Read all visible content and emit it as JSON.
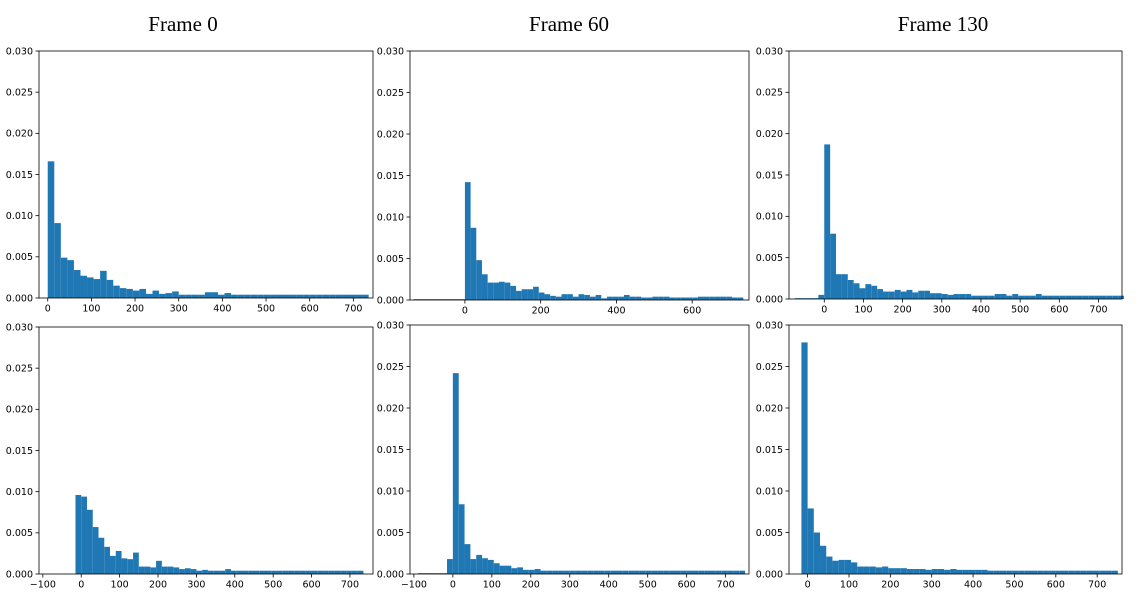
{
  "column_titles": [
    "Frame 0",
    "Frame 60",
    "Frame 130"
  ],
  "colors": {
    "bar": "#1f77b4",
    "axis": "#000000",
    "background": "#ffffff"
  },
  "chart_data": [
    {
      "type": "bar",
      "id": "frame0-top",
      "title": "Frame 0",
      "xlim": [
        -20,
        745
      ],
      "ylim": [
        0,
        0.03
      ],
      "xticks": [
        0,
        100,
        200,
        300,
        400,
        500,
        600,
        700
      ],
      "yticks": [
        0.0,
        0.005,
        0.01,
        0.015,
        0.02,
        0.025,
        0.03
      ],
      "ytick_labels": [
        "0.000",
        "0.005",
        "0.010",
        "0.015",
        "0.020",
        "0.025",
        "0.030"
      ],
      "bin_start": 0,
      "bin_width": 15,
      "values": [
        0.0166,
        0.0091,
        0.0049,
        0.0046,
        0.0034,
        0.0027,
        0.0025,
        0.0023,
        0.0033,
        0.0022,
        0.0015,
        0.0012,
        0.0011,
        0.0009,
        0.0011,
        0.0005,
        0.0009,
        0.0005,
        0.0006,
        0.0008,
        0.0004,
        0.0004,
        0.0004,
        0.0004,
        0.0007,
        0.0007,
        0.0004,
        0.0006,
        0.0004,
        0.0004,
        0.0004,
        0.0004,
        0.0004,
        0.0004,
        0.0004,
        0.0004,
        0.0004,
        0.0004,
        0.0004,
        0.0004,
        0.0004,
        0.0004,
        0.0004,
        0.0004,
        0.0004,
        0.0004,
        0.0004,
        0.0004,
        0.0004
      ],
      "xlabel": "",
      "ylabel": ""
    },
    {
      "type": "bar",
      "id": "frame60-top",
      "title": "Frame 60",
      "xlim": [
        -145,
        750
      ],
      "ylim": [
        0,
        0.03
      ],
      "xticks": [
        0,
        200,
        400,
        600
      ],
      "yticks": [
        0.0,
        0.005,
        0.01,
        0.015,
        0.02,
        0.025,
        0.03
      ],
      "ytick_labels": [
        "0.000",
        "0.005",
        "0.010",
        "0.015",
        "0.020",
        "0.025",
        "0.030"
      ],
      "bin_start": -135,
      "bin_width": 15,
      "values": [
        0.0001,
        0.0001,
        0.0001,
        0.0001,
        0.0001,
        0.0001,
        0.0001,
        0.0001,
        0.0001,
        0.0142,
        0.0087,
        0.0048,
        0.0031,
        0.0021,
        0.0021,
        0.0022,
        0.0021,
        0.0017,
        0.0011,
        0.0013,
        0.0013,
        0.0016,
        0.0009,
        0.0007,
        0.0005,
        0.0004,
        0.0007,
        0.0007,
        0.0004,
        0.0007,
        0.0006,
        0.0004,
        0.0006,
        0.0002,
        0.0004,
        0.0004,
        0.0004,
        0.0006,
        0.0004,
        0.0004,
        0.0003,
        0.0003,
        0.0004,
        0.0004,
        0.0004,
        0.0003,
        0.0003,
        0.0003,
        0.0003,
        0.0003,
        0.0004,
        0.0004,
        0.0004,
        0.0004,
        0.0004,
        0.0004,
        0.0003,
        0.0003
      ],
      "xlabel": "",
      "ylabel": ""
    },
    {
      "type": "bar",
      "id": "frame130-top",
      "title": "Frame 130",
      "xlim": [
        -90,
        760
      ],
      "ylim": [
        0,
        0.03
      ],
      "xticks": [
        0,
        100,
        200,
        300,
        400,
        500,
        600,
        700
      ],
      "yticks": [
        0.0,
        0.005,
        0.01,
        0.015,
        0.02,
        0.025,
        0.03
      ],
      "ytick_labels": [
        "0.000",
        "0.005",
        "0.010",
        "0.015",
        "0.020",
        "0.025",
        "0.030"
      ],
      "bin_start": -75,
      "bin_width": 15,
      "values": [
        0.0001,
        0.0001,
        0.0001,
        0.0001,
        0.0005,
        0.0187,
        0.0079,
        0.003,
        0.003,
        0.0023,
        0.0019,
        0.0013,
        0.0018,
        0.0016,
        0.0012,
        0.0009,
        0.0009,
        0.0011,
        0.0009,
        0.0011,
        0.0008,
        0.001,
        0.001,
        0.0007,
        0.0007,
        0.0006,
        0.0005,
        0.0006,
        0.0006,
        0.0006,
        0.0004,
        0.0004,
        0.0004,
        0.0004,
        0.0006,
        0.0006,
        0.0004,
        0.0006,
        0.0004,
        0.0004,
        0.0004,
        0.0006,
        0.0004,
        0.0004,
        0.0004,
        0.0004,
        0.0004,
        0.0004,
        0.0004,
        0.0004,
        0.0004,
        0.0004,
        0.0004,
        0.0004,
        0.0004,
        0.0004
      ],
      "xlabel": "",
      "ylabel": ""
    },
    {
      "type": "bar",
      "id": "frame0-bottom",
      "title": "",
      "xlim": [
        -110,
        760
      ],
      "ylim": [
        0,
        0.03
      ],
      "xticks": [
        -100,
        0,
        100,
        200,
        300,
        400,
        500,
        600,
        700
      ],
      "yticks": [
        0.0,
        0.005,
        0.01,
        0.015,
        0.02,
        0.025,
        0.03
      ],
      "ytick_labels": [
        "0.000",
        "0.005",
        "0.010",
        "0.015",
        "0.020",
        "0.025",
        "0.030"
      ],
      "bin_start": -15,
      "bin_width": 15,
      "values": [
        0.0096,
        0.0094,
        0.0078,
        0.0057,
        0.0044,
        0.0033,
        0.0022,
        0.0028,
        0.0019,
        0.0018,
        0.0026,
        0.0009,
        0.0009,
        0.0008,
        0.0016,
        0.0009,
        0.0009,
        0.0008,
        0.0006,
        0.0007,
        0.0006,
        0.0004,
        0.0005,
        0.0004,
        0.0004,
        0.0004,
        0.0006,
        0.0004,
        0.0004,
        0.0004,
        0.0004,
        0.0004,
        0.0004,
        0.0004,
        0.0004,
        0.0004,
        0.0004,
        0.0004,
        0.0004,
        0.0004,
        0.0004,
        0.0004,
        0.0004,
        0.0004,
        0.0004,
        0.0004,
        0.0004,
        0.0004,
        0.0004,
        0.0004
      ],
      "xlabel": "",
      "ylabel": ""
    },
    {
      "type": "bar",
      "id": "frame60-bottom",
      "title": "",
      "xlim": [
        -110,
        760
      ],
      "ylim": [
        0,
        0.03
      ],
      "xticks": [
        -100,
        0,
        100,
        200,
        300,
        400,
        500,
        600,
        700
      ],
      "yticks": [
        0.0,
        0.005,
        0.01,
        0.015,
        0.02,
        0.025,
        0.03
      ],
      "ytick_labels": [
        "0.000",
        "0.005",
        "0.010",
        "0.015",
        "0.020",
        "0.025",
        "0.030"
      ],
      "bin_start": -90,
      "bin_width": 15,
      "values": [
        0.0001,
        0.0001,
        0.0001,
        0.0001,
        0.0001,
        0.0018,
        0.0242,
        0.0084,
        0.0036,
        0.0018,
        0.0023,
        0.0019,
        0.0017,
        0.0013,
        0.001,
        0.001,
        0.0007,
        0.0008,
        0.0005,
        0.0005,
        0.0006,
        0.0004,
        0.0004,
        0.0004,
        0.0004,
        0.0004,
        0.0004,
        0.0004,
        0.0004,
        0.0004,
        0.0004,
        0.0004,
        0.0004,
        0.0004,
        0.0004,
        0.0004,
        0.0004,
        0.0004,
        0.0004,
        0.0004,
        0.0004,
        0.0004,
        0.0004,
        0.0004,
        0.0004,
        0.0004,
        0.0004,
        0.0004,
        0.0004,
        0.0004,
        0.0004,
        0.0004,
        0.0004,
        0.0004,
        0.0004,
        0.0004
      ],
      "xlabel": "",
      "ylabel": ""
    },
    {
      "type": "bar",
      "id": "frame130-bottom",
      "title": "",
      "xlim": [
        -45,
        760
      ],
      "ylim": [
        0,
        0.03
      ],
      "xticks": [
        0,
        100,
        200,
        300,
        400,
        500,
        600,
        700
      ],
      "yticks": [
        0.0,
        0.005,
        0.01,
        0.015,
        0.02,
        0.025,
        0.03
      ],
      "ytick_labels": [
        "0.000",
        "0.005",
        "0.010",
        "0.015",
        "0.020",
        "0.025",
        "0.030"
      ],
      "bin_start": -15,
      "bin_width": 15,
      "values": [
        0.0279,
        0.0079,
        0.005,
        0.0034,
        0.0021,
        0.0016,
        0.0017,
        0.0017,
        0.0014,
        0.0009,
        0.0009,
        0.0009,
        0.0008,
        0.0009,
        0.0007,
        0.0007,
        0.0007,
        0.0006,
        0.0006,
        0.0006,
        0.0005,
        0.0006,
        0.0006,
        0.0005,
        0.0006,
        0.0005,
        0.0005,
        0.0005,
        0.0005,
        0.0005,
        0.0004,
        0.0004,
        0.0004,
        0.0004,
        0.0004,
        0.0004,
        0.0004,
        0.0004,
        0.0004,
        0.0004,
        0.0004,
        0.0004,
        0.0004,
        0.0004,
        0.0004,
        0.0004,
        0.0004,
        0.0004,
        0.0004,
        0.0004,
        0.0004
      ],
      "xlabel": "",
      "ylabel": ""
    }
  ]
}
